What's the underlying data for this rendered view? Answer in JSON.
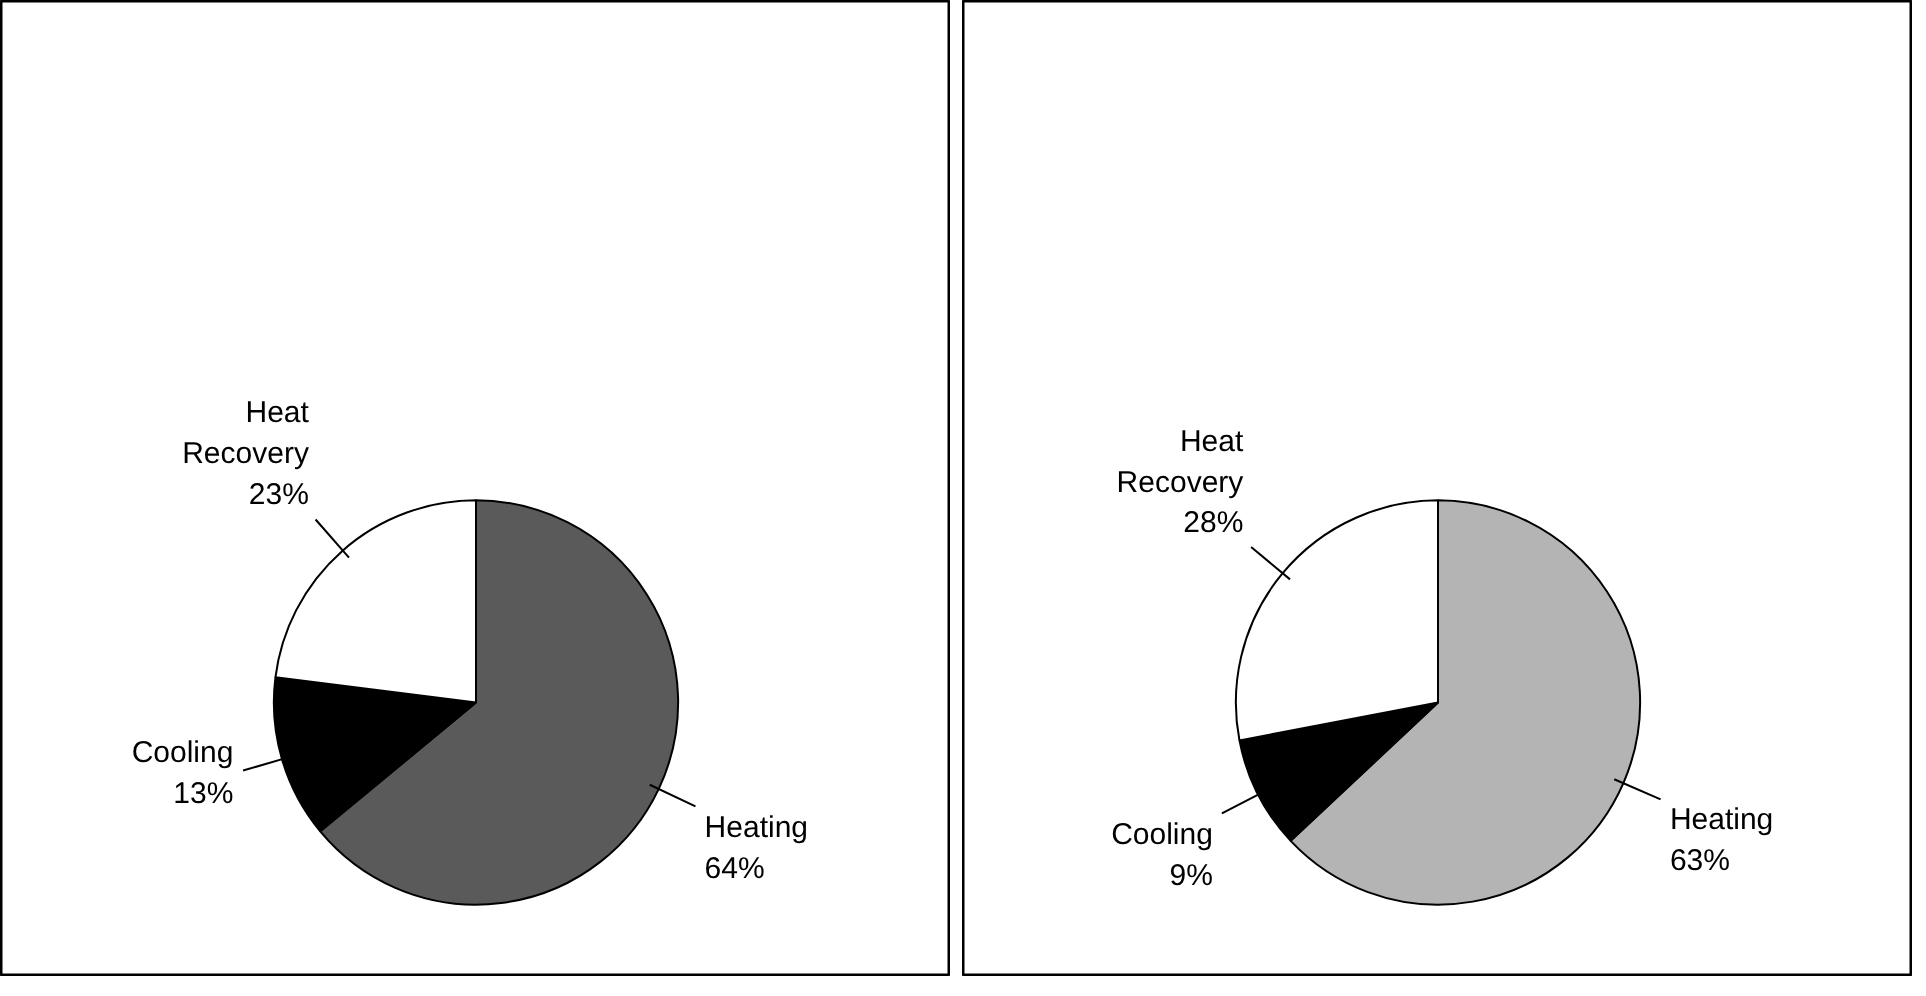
{
  "chart_data": [
    {
      "type": "pie",
      "categories": [
        "Heating",
        "Cooling",
        "Heat\nRecovery"
      ],
      "values": [
        64,
        13,
        23
      ],
      "colors": [
        "#5a5a5a",
        "#000000",
        "#ffffff"
      ],
      "value_labels": [
        "64%",
        "13%",
        "23%"
      ]
    },
    {
      "type": "pie",
      "categories": [
        "Heating",
        "Cooling",
        "Heat\nRecovery"
      ],
      "values": [
        63,
        9,
        28
      ],
      "colors": [
        "#b4b4b4",
        "#000000",
        "#ffffff"
      ],
      "value_labels": [
        "63%",
        "9%",
        "28%"
      ]
    }
  ]
}
